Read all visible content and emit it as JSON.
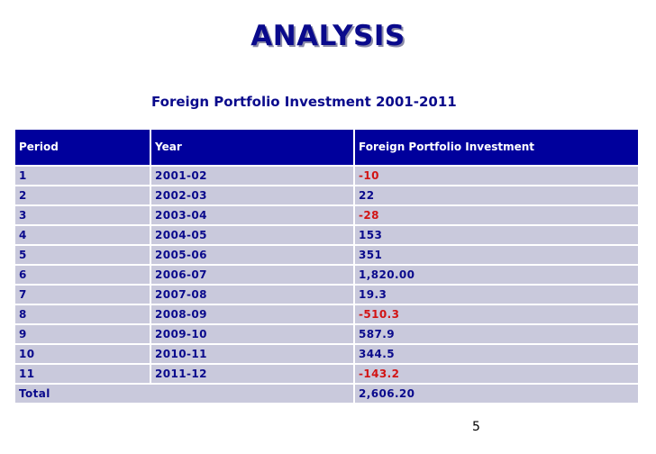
{
  "title": "ANALYSIS",
  "caption": "Foreign Portfolio Investment 2001-2011",
  "table": {
    "headers": [
      "Period",
      "Year",
      "Foreign Portfolio Investment"
    ],
    "rows": [
      {
        "period": "1",
        "year": "2001-02",
        "value": "-10",
        "negative": true
      },
      {
        "period": "2",
        "year": "2002-03",
        "value": "22",
        "negative": false
      },
      {
        "period": "3",
        "year": "2003-04",
        "value": "-28",
        "negative": true
      },
      {
        "period": "4",
        "year": "2004-05",
        "value": "153",
        "negative": false
      },
      {
        "period": "5",
        "year": "2005-06",
        "value": "351",
        "negative": false
      },
      {
        "period": "6",
        "year": "2006-07",
        "value": "1,820.00",
        "negative": false
      },
      {
        "period": "7",
        "year": "2007-08",
        "value": "19.3",
        "negative": false
      },
      {
        "period": "8",
        "year": "2008-09",
        "value": "-510.3",
        "negative": true
      },
      {
        "period": "9",
        "year": "2009-10",
        "value": "587.9",
        "negative": false
      },
      {
        "period": "10",
        "year": "2010-11",
        "value": "344.5",
        "negative": false
      },
      {
        "period": "11",
        "year": "2011-12",
        "value": "-143.2",
        "negative": true
      }
    ],
    "total": {
      "label": "Total",
      "value": "2,606.20"
    }
  },
  "page_number": "5",
  "colors": {
    "heading": "#0a0a8c",
    "header_bg": "#00009c",
    "row_bg": "#c9c9dc",
    "negative": "#d21414"
  }
}
